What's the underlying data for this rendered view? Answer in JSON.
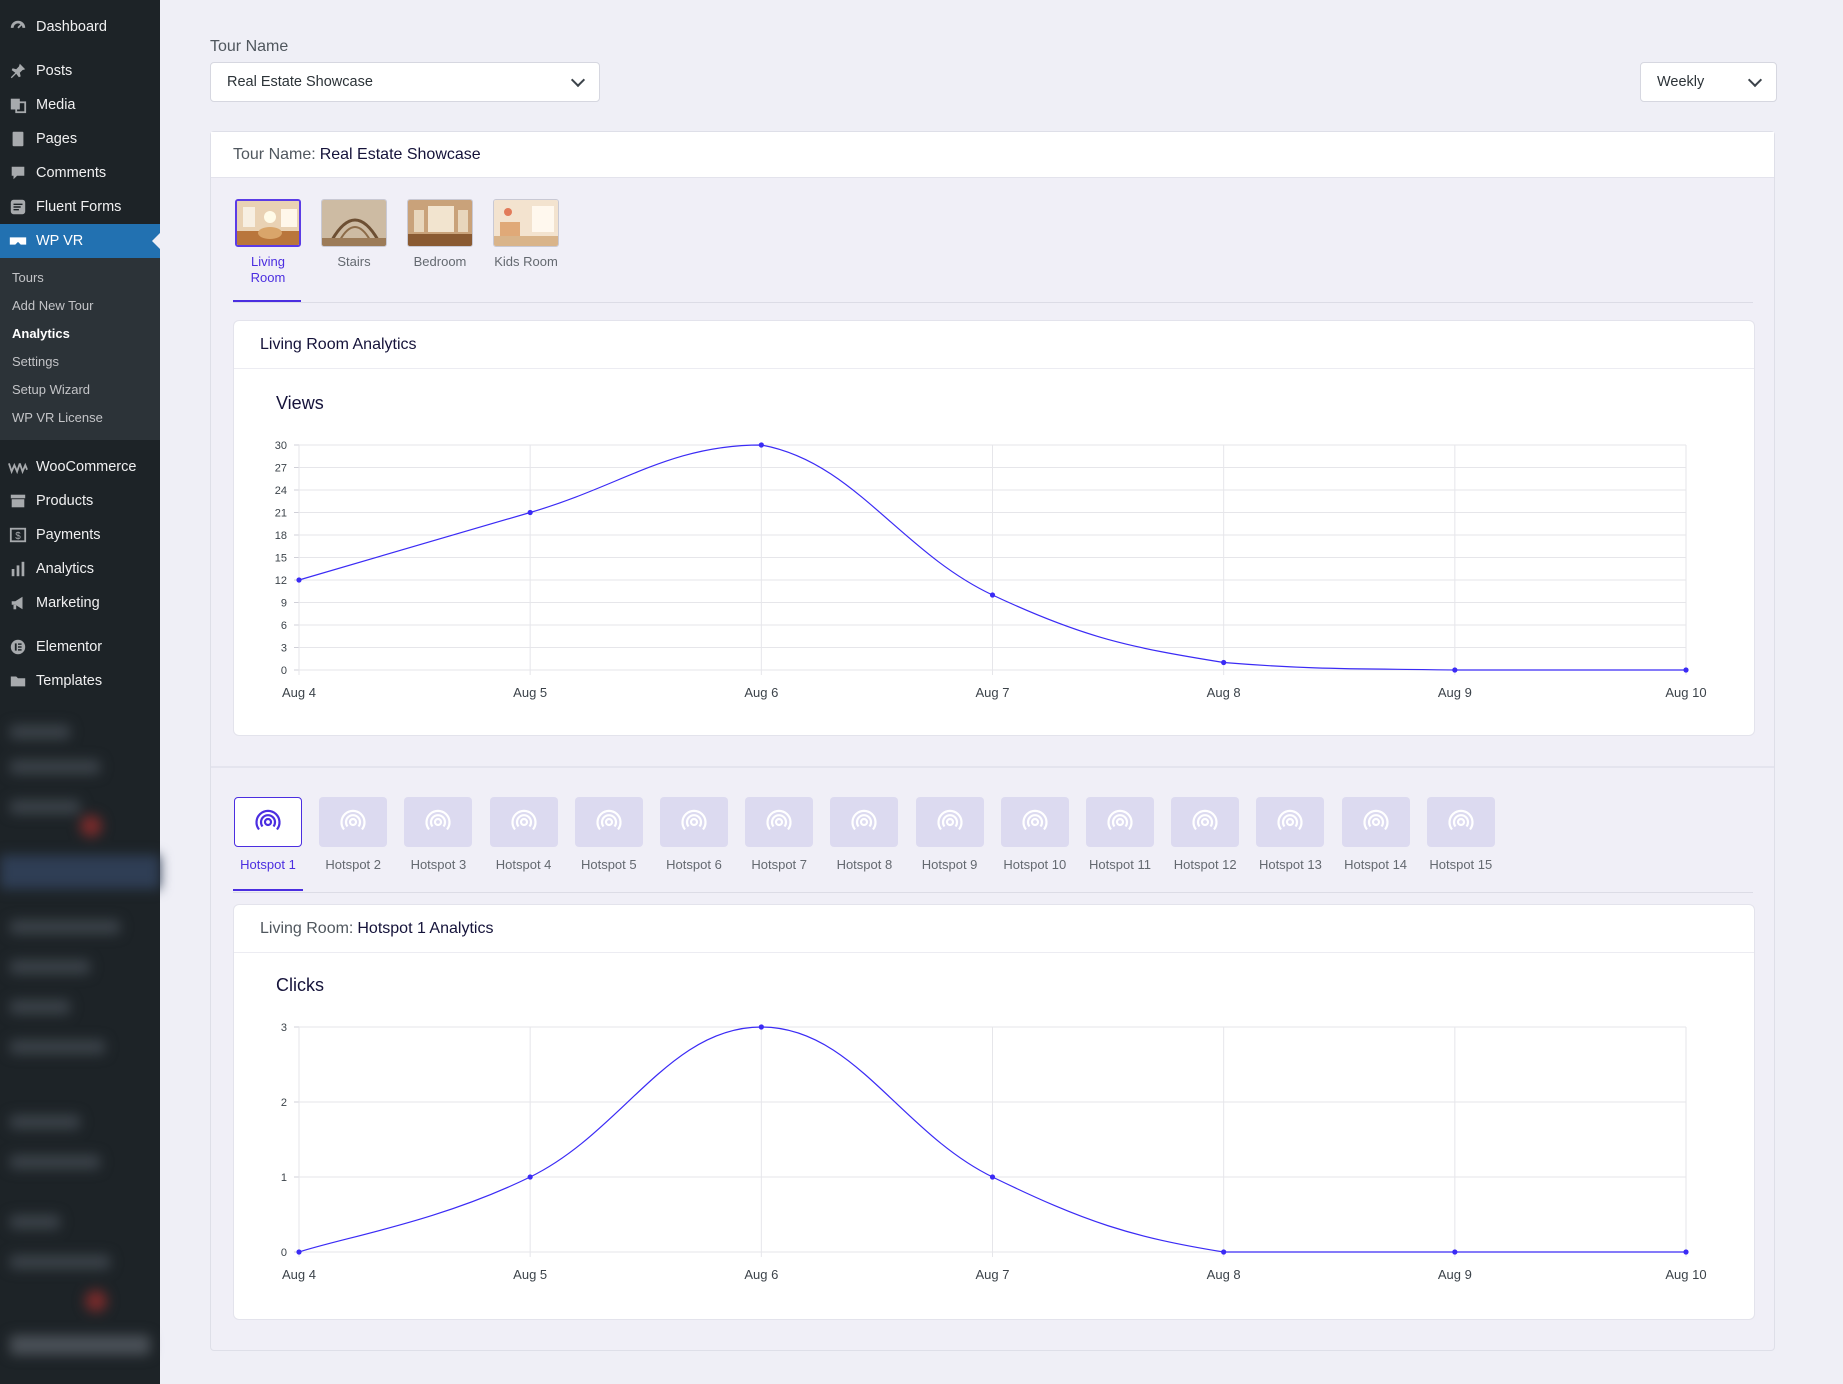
{
  "sidebar": {
    "items_top": [
      {
        "label": "Dashboard",
        "icon": "dashboard-icon"
      }
    ],
    "items_content": [
      {
        "label": "Posts",
        "icon": "pin-icon"
      },
      {
        "label": "Media",
        "icon": "media-icon"
      },
      {
        "label": "Pages",
        "icon": "pages-icon"
      },
      {
        "label": "Comments",
        "icon": "comment-icon"
      },
      {
        "label": "Fluent Forms",
        "icon": "forms-icon"
      },
      {
        "label": "WP VR",
        "icon": "vr-headset-icon"
      }
    ],
    "submenu": [
      "Tours",
      "Add New Tour",
      "Analytics",
      "Settings",
      "Setup Wizard",
      "WP VR License"
    ],
    "submenu_current": "Analytics",
    "items_commerce": [
      {
        "label": "WooCommerce",
        "icon": "woo-icon"
      },
      {
        "label": "Products",
        "icon": "archive-icon"
      },
      {
        "label": "Payments",
        "icon": "dollar-icon"
      },
      {
        "label": "Analytics",
        "icon": "bar-chart-icon"
      },
      {
        "label": "Marketing",
        "icon": "megaphone-icon"
      }
    ],
    "items_builder": [
      {
        "label": "Elementor",
        "icon": "elementor-icon"
      },
      {
        "label": "Templates",
        "icon": "folder-icon"
      }
    ]
  },
  "filters": {
    "tour_label": "Tour Name",
    "tour_value": "Real Estate Showcase",
    "period_value": "Weekly"
  },
  "tour_card": {
    "label": "Tour Name:",
    "value": "Real Estate Showcase"
  },
  "scenes": {
    "tabs": [
      "Living Room",
      "Stairs",
      "Bedroom",
      "Kids Room"
    ],
    "active": 0
  },
  "scene_analytics": {
    "heading": "Living Room Analytics"
  },
  "hotspots": {
    "tabs": [
      "Hotspot 1",
      "Hotspot 2",
      "Hotspot 3",
      "Hotspot 4",
      "Hotspot 5",
      "Hotspot 6",
      "Hotspot 7",
      "Hotspot 8",
      "Hotspot 9",
      "Hotspot 10",
      "Hotspot 11",
      "Hotspot 12",
      "Hotspot 13",
      "Hotspot 14",
      "Hotspot 15"
    ],
    "active": 0
  },
  "hotspot_analytics": {
    "scene_label": "Living Room:",
    "hotspot_label": "Hotspot 1 Analytics"
  },
  "colors": {
    "accent": "#4b2ee0",
    "line": "#3b2bf5",
    "sidebar_bg": "#1d2327",
    "sidebar_active": "#2271b1"
  },
  "chart_data": [
    {
      "type": "line",
      "title": "Views",
      "x": [
        "Aug 4",
        "Aug 5",
        "Aug 6",
        "Aug 7",
        "Aug 8",
        "Aug 9",
        "Aug 10"
      ],
      "y_ticks": [
        0,
        3,
        6,
        9,
        12,
        15,
        18,
        21,
        24,
        27,
        30
      ],
      "values": [
        12,
        21,
        30,
        10,
        1,
        0,
        0
      ],
      "ylim": [
        0,
        30
      ],
      "grid": true,
      "smooth": true
    },
    {
      "type": "line",
      "title": "Clicks",
      "x": [
        "Aug 4",
        "Aug 5",
        "Aug 6",
        "Aug 7",
        "Aug 8",
        "Aug 9",
        "Aug 10"
      ],
      "y_ticks": [
        0,
        1,
        2,
        3
      ],
      "values": [
        0,
        1,
        3,
        1,
        0,
        0,
        0
      ],
      "ylim": [
        0,
        3
      ],
      "grid": true,
      "smooth": true
    }
  ]
}
